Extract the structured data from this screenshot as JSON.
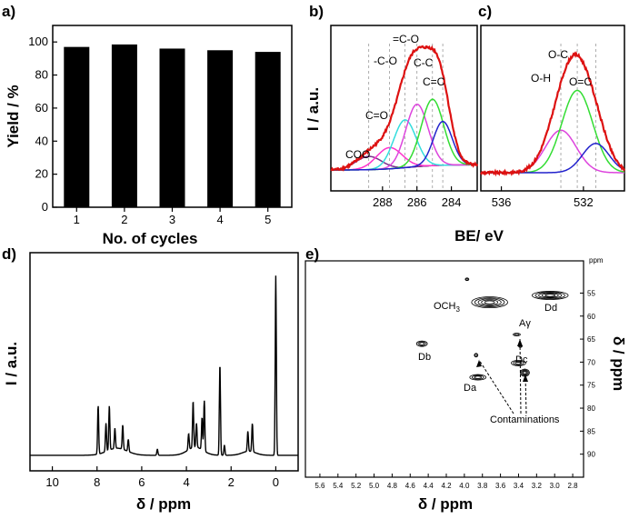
{
  "chart_data": [
    {
      "panel": "a)",
      "type": "bar",
      "categories": [
        "1",
        "2",
        "3",
        "4",
        "5"
      ],
      "values": [
        97,
        98.5,
        96,
        95,
        94
      ],
      "xlabel": "No. of cycles",
      "ylabel": "Yield / %",
      "ylim": [
        0,
        110
      ],
      "yticks": [
        "0",
        "20",
        "40",
        "60",
        "80",
        "100"
      ],
      "bar_color": "#000000"
    },
    {
      "panel": "b)",
      "type": "line",
      "xlabel": "BE/ eV",
      "ylabel": "I / a.u.",
      "xlim": [
        291,
        282.5
      ],
      "xticks": [
        "288",
        "286",
        "284"
      ],
      "peak_labels": [
        "COO",
        "C=O",
        "-C-O",
        "=C-O",
        "C-C",
        "C=C"
      ],
      "components": [
        {
          "color": "#7b2d8b",
          "center": 288.8,
          "height": 0.1,
          "width": 0.75
        },
        {
          "color": "#ff33cc",
          "center": 287.6,
          "height": 0.16,
          "width": 0.75
        },
        {
          "color": "#33dddd",
          "center": 286.7,
          "height": 0.36,
          "width": 0.65
        },
        {
          "color": "#dd44dd",
          "center": 286.0,
          "height": 0.47,
          "width": 0.65
        },
        {
          "color": "#33dd33",
          "center": 285.1,
          "height": 0.5,
          "width": 0.65
        },
        {
          "color": "#2222cc",
          "center": 284.5,
          "height": 0.33,
          "width": 0.55
        }
      ],
      "envelope_color": "#dd1111",
      "background_color": "#000000"
    },
    {
      "panel": "c)",
      "type": "line",
      "xlim": [
        537,
        530
      ],
      "xticks": [
        "536",
        "532"
      ],
      "peak_labels": [
        "O-H",
        "O-C",
        "O=C"
      ],
      "components": [
        {
          "color": "#dd44dd",
          "center": 533.1,
          "height": 0.32,
          "width": 0.75
        },
        {
          "color": "#33dd33",
          "center": 532.3,
          "height": 0.62,
          "width": 0.75
        },
        {
          "color": "#2222cc",
          "center": 531.4,
          "height": 0.22,
          "width": 0.65
        }
      ],
      "envelope_color": "#dd1111"
    },
    {
      "panel": "d)",
      "type": "line",
      "xlabel": "δ / ppm",
      "ylabel": "I / a.u.",
      "xlim": [
        11,
        -1
      ],
      "xticks": [
        "10",
        "8",
        "6",
        "4",
        "2",
        "0"
      ],
      "peaks": [
        {
          "ppm": 7.95,
          "height": 0.24
        },
        {
          "ppm": 7.6,
          "height": 0.14
        },
        {
          "ppm": 7.45,
          "height": 0.22
        },
        {
          "ppm": 7.2,
          "height": 0.1
        },
        {
          "ppm": 6.85,
          "height": 0.12
        },
        {
          "ppm": 6.6,
          "height": 0.06
        },
        {
          "ppm": 5.3,
          "height": 0.03
        },
        {
          "ppm": 3.9,
          "height": 0.08
        },
        {
          "ppm": 3.7,
          "height": 0.23
        },
        {
          "ppm": 3.55,
          "height": 0.12
        },
        {
          "ppm": 3.3,
          "height": 0.16
        },
        {
          "ppm": 3.2,
          "height": 0.25
        },
        {
          "ppm": 2.5,
          "height": 0.45
        },
        {
          "ppm": 2.3,
          "height": 0.05
        },
        {
          "ppm": 1.25,
          "height": 0.1
        },
        {
          "ppm": 1.05,
          "height": 0.14
        },
        {
          "ppm": 0.0,
          "height": 0.89
        }
      ]
    },
    {
      "panel": "e)",
      "type": "scatter",
      "xlabel": "δ / ppm",
      "ylabel": "δ / ppm",
      "ppm_unit": "ppm",
      "xlim": [
        5.7,
        2.7
      ],
      "ylim": [
        48,
        95
      ],
      "xticks": [
        "5.6",
        "5.4",
        "5.2",
        "5.0",
        "4.8",
        "4.6",
        "4.4",
        "4.2",
        "4.0",
        "3.8",
        "3.6",
        "3.4",
        "3.2",
        "3.0",
        "2.8"
      ],
      "yticks": [
        "55",
        "60",
        "65",
        "70",
        "75",
        "80",
        "85",
        "90"
      ],
      "cross_peaks": [
        {
          "label": "OCH3",
          "x": 3.72,
          "y": 57.0,
          "rx": 0.2,
          "ry": 1.2
        },
        {
          "label": "Dd",
          "x": 3.05,
          "y": 55.5,
          "rx": 0.2,
          "ry": 0.9
        },
        {
          "label": "Db",
          "x": 4.47,
          "y": 66.0,
          "rx": 0.06,
          "ry": 0.6
        },
        {
          "label": "Da",
          "x": 3.85,
          "y": 73.3,
          "rx": 0.09,
          "ry": 0.6
        },
        {
          "label": "Dc",
          "x": 3.4,
          "y": 70.2,
          "rx": 0.08,
          "ry": 0.6
        },
        {
          "label": "",
          "x": 3.33,
          "y": 72.3,
          "rx": 0.05,
          "ry": 0.8
        },
        {
          "label": "",
          "x": 3.87,
          "y": 68.5,
          "rx": 0.02,
          "ry": 0.4
        },
        {
          "label": "",
          "x": 3.97,
          "y": 52.0,
          "rx": 0.02,
          "ry": 0.3
        },
        {
          "label": "",
          "x": 3.42,
          "y": 64.0,
          "rx": 0.04,
          "ry": 0.3
        },
        {
          "label": "",
          "x": 3.38,
          "y": 66.5,
          "rx": 0.02,
          "ry": 0.3
        }
      ],
      "labels": {
        "och3": "OCH",
        "och3_sub": "3",
        "dd": "Dd",
        "db": "Db",
        "da": "Da",
        "dc": "Dc",
        "agamma": "Aγ",
        "contaminations": "Contaminations"
      }
    }
  ]
}
